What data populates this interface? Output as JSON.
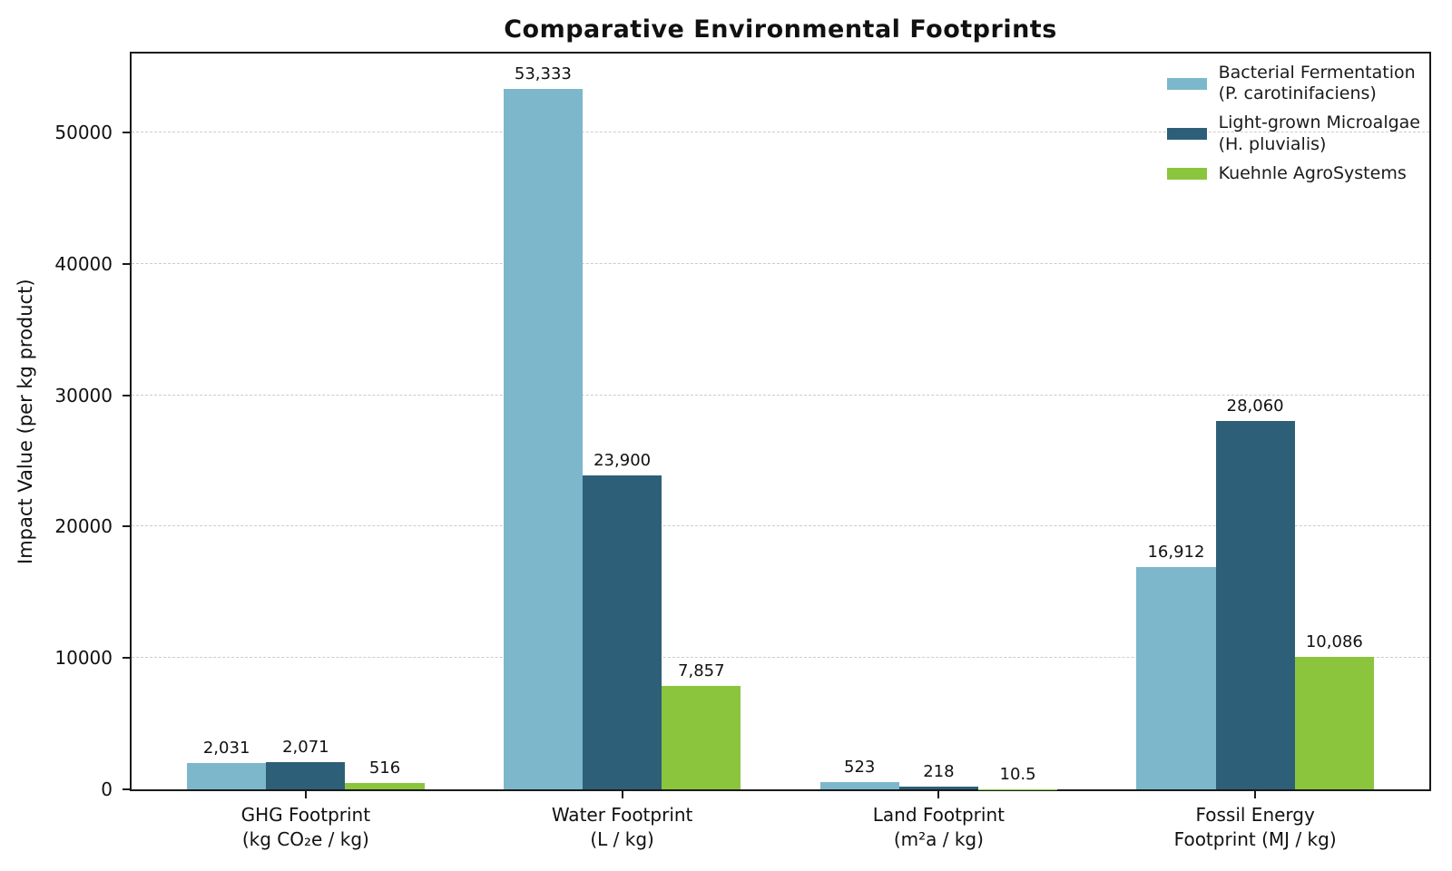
{
  "chart_data": {
    "type": "bar",
    "title": "Comparative Environmental Footprints",
    "ylabel": "Impact Value (per kg product)",
    "xlabel": "",
    "ylim": [
      0,
      56000
    ],
    "yticks": [
      0,
      10000,
      20000,
      30000,
      40000,
      50000
    ],
    "grid": "horizontal dashed",
    "grid_color": "#cccccc",
    "text_color": "#111111",
    "legend_position": "upper right",
    "categories": [
      {
        "label": "GHG Footprint (kg CO₂e / kg)",
        "lines": [
          "GHG Footprint",
          "(kg CO₂e / kg)"
        ]
      },
      {
        "label": "Water Footprint (L / kg)",
        "lines": [
          "Water Footprint",
          "(L / kg)"
        ]
      },
      {
        "label": "Land Footprint (m²a / kg)",
        "lines": [
          "Land Footprint",
          "(m²a / kg)"
        ]
      },
      {
        "label": "Fossil Energy Footprint (MJ / kg)",
        "lines": [
          "Fossil Energy",
          "Footprint (MJ / kg)"
        ]
      }
    ],
    "series": [
      {
        "name": "Bacterial Fermentation (P. carotinifaciens)",
        "legend_lines": [
          "Bacterial Fermentation",
          "(P. carotinifaciens)"
        ],
        "color": "#7db7cb",
        "values": [
          2031,
          53333,
          523,
          16912
        ],
        "value_labels": [
          "2,031",
          "53,333",
          "523",
          "16,912"
        ]
      },
      {
        "name": "Light-grown Microalgae (H. pluvialis)",
        "legend_lines": [
          "Light-grown Microalgae",
          "(H. pluvialis)"
        ],
        "color": "#2d5f78",
        "values": [
          2071,
          23900,
          218,
          28060
        ],
        "value_labels": [
          "2,071",
          "23,900",
          "218",
          "28,060"
        ]
      },
      {
        "name": "Kuehnle AgroSystems",
        "legend_lines": [
          "Kuehnle AgroSystems"
        ],
        "color": "#8bc53e",
        "values": [
          516,
          7857,
          10.5,
          10086
        ],
        "value_labels": [
          "516",
          "7,857",
          "10.5",
          "10,086"
        ]
      }
    ]
  }
}
